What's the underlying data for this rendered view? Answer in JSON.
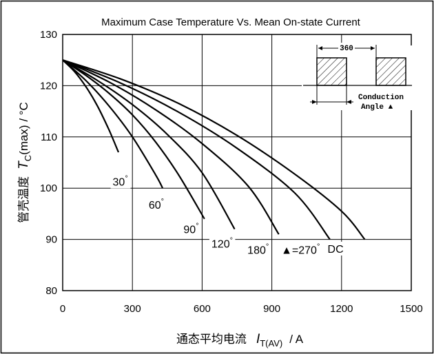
{
  "chart_data": {
    "type": "line",
    "title": "Maximum Case Temperature Vs. Mean On-state Current",
    "xlabel": {
      "cn": "通态平均电流",
      "symbol": "I",
      "subscript": "T(AV)",
      "unit": "/  A"
    },
    "ylabel": {
      "cn": "管壳温度",
      "symbol": "T",
      "subscript": "C",
      "suffix": "(max) / °C"
    },
    "xlim": [
      0,
      1500
    ],
    "ylim": [
      80,
      130
    ],
    "xticks": [
      "0",
      "300",
      "600",
      "900",
      "1200",
      "1500"
    ],
    "yticks": [
      "80",
      "90",
      "100",
      "110",
      "120",
      "130"
    ],
    "grid": true,
    "series": [
      {
        "name": "30°",
        "x": [
          0,
          50,
          100,
          150,
          200,
          240
        ],
        "y": [
          125,
          122.8,
          119.8,
          116.0,
          111.3,
          107
        ]
      },
      {
        "name": "60°",
        "x": [
          0,
          100,
          200,
          300,
          400,
          430
        ],
        "y": [
          125,
          121.0,
          116.0,
          110.0,
          102.6,
          100
        ]
      },
      {
        "name": "90°",
        "x": [
          0,
          100,
          200,
          300,
          400,
          500,
          610
        ],
        "y": [
          125,
          122.0,
          118.5,
          114.3,
          109.0,
          102.5,
          94
        ]
      },
      {
        "name": "120°",
        "x": [
          0,
          150,
          300,
          450,
          600,
          740
        ],
        "y": [
          125,
          121.0,
          116.3,
          110.5,
          103.0,
          92
        ]
      },
      {
        "name": "180°",
        "x": [
          0,
          200,
          400,
          600,
          800,
          930
        ],
        "y": [
          125,
          120.7,
          115.3,
          108.7,
          100.3,
          91
        ]
      },
      {
        "name": "▲=270°",
        "x": [
          0,
          250,
          500,
          750,
          1000,
          1150
        ],
        "y": [
          125,
          120.5,
          114.8,
          107.8,
          99.0,
          90
        ]
      },
      {
        "name": "DC",
        "x": [
          0,
          250,
          500,
          750,
          1000,
          1200,
          1300
        ],
        "y": [
          125,
          121.3,
          116.5,
          110.3,
          102.7,
          95.5,
          90
        ]
      }
    ],
    "curve_labels": [
      {
        "text": "30",
        "x": 215,
        "y": 100.5
      },
      {
        "text": "60",
        "x": 370,
        "y": 96
      },
      {
        "text": "90",
        "x": 520,
        "y": 91.2
      },
      {
        "text": "120",
        "x": 640,
        "y": 88.4
      },
      {
        "text": "180",
        "x": 795,
        "y": 87.2
      },
      {
        "text": "▲=270",
        "x": 940,
        "y": 87.2
      },
      {
        "text": "DC",
        "x": 1140,
        "y": 87.4
      }
    ],
    "inset": {
      "period_label": "360",
      "conduction_label": "Conduction",
      "angle_label": "Angle ▲"
    }
  },
  "degree_mark": "°"
}
